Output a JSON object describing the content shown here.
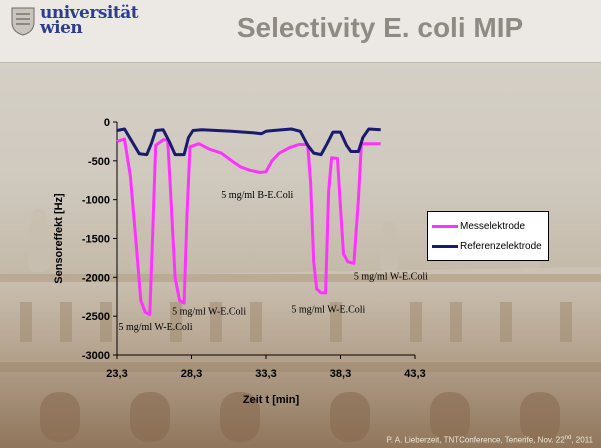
{
  "header": {
    "logo_text_line1": "universität",
    "logo_text_line2": "wien",
    "title": "Selectivity E. coli MIP"
  },
  "footer": {
    "text": "P. A. Lieberzeit, TNTConference, Tenerife, Nov. 22",
    "sup": "nd",
    "year": ", 2011"
  },
  "colors": {
    "messelektrode": "#ff33ff",
    "referenzelektrode": "#1a1a6e"
  },
  "chart_data": {
    "type": "line",
    "xlabel": "Zeit t [min]",
    "ylabel": "Sensoreffekt [Hz]",
    "xlim": [
      23.3,
      43.3
    ],
    "ylim": [
      -3000,
      0
    ],
    "x_ticks": [
      "23,3",
      "28,3",
      "33,3",
      "38,3",
      "43,3"
    ],
    "x_tick_values": [
      23.3,
      28.3,
      33.3,
      38.3,
      43.3
    ],
    "y_ticks": [
      "0",
      "-500",
      "-1000",
      "-1500",
      "-2000",
      "-2500",
      "-3000"
    ],
    "y_tick_values": [
      0,
      -500,
      -1000,
      -1500,
      -2000,
      -2500,
      -3000
    ],
    "legend_position": "right",
    "series": [
      {
        "name": "Messelektrode",
        "color": "#ff33ff",
        "points": [
          [
            23.3,
            -250
          ],
          [
            23.8,
            -220
          ],
          [
            24.2,
            -700
          ],
          [
            24.6,
            -1600
          ],
          [
            24.9,
            -2300
          ],
          [
            25.2,
            -2450
          ],
          [
            25.5,
            -2480
          ],
          [
            25.7,
            -1400
          ],
          [
            25.9,
            -300
          ],
          [
            26.4,
            -230
          ],
          [
            26.7,
            -230
          ],
          [
            26.9,
            -900
          ],
          [
            27.2,
            -2000
          ],
          [
            27.5,
            -2300
          ],
          [
            27.8,
            -2330
          ],
          [
            28.0,
            -1200
          ],
          [
            28.2,
            -320
          ],
          [
            28.8,
            -280
          ],
          [
            29.5,
            -350
          ],
          [
            30.3,
            -400
          ],
          [
            31.0,
            -500
          ],
          [
            31.6,
            -580
          ],
          [
            32.2,
            -620
          ],
          [
            32.9,
            -650
          ],
          [
            33.3,
            -640
          ],
          [
            33.7,
            -500
          ],
          [
            34.2,
            -400
          ],
          [
            34.9,
            -330
          ],
          [
            35.5,
            -290
          ],
          [
            36.1,
            -290
          ],
          [
            36.3,
            -800
          ],
          [
            36.5,
            -1800
          ],
          [
            36.7,
            -2150
          ],
          [
            37.0,
            -2200
          ],
          [
            37.3,
            -2200
          ],
          [
            37.5,
            -900
          ],
          [
            37.7,
            -460
          ],
          [
            38.1,
            -470
          ],
          [
            38.3,
            -1100
          ],
          [
            38.5,
            -1700
          ],
          [
            38.8,
            -1800
          ],
          [
            39.2,
            -1820
          ],
          [
            39.5,
            -1000
          ],
          [
            39.7,
            -280
          ],
          [
            40.2,
            -280
          ],
          [
            41.0,
            -280
          ]
        ]
      },
      {
        "name": "Referenzelektrode",
        "color": "#1a1a6e",
        "points": [
          [
            23.3,
            -110
          ],
          [
            23.8,
            -90
          ],
          [
            24.3,
            -250
          ],
          [
            24.8,
            -410
          ],
          [
            25.3,
            -420
          ],
          [
            25.6,
            -280
          ],
          [
            25.9,
            -110
          ],
          [
            26.4,
            -100
          ],
          [
            26.8,
            -250
          ],
          [
            27.2,
            -420
          ],
          [
            27.8,
            -420
          ],
          [
            28.1,
            -200
          ],
          [
            28.4,
            -110
          ],
          [
            29.0,
            -100
          ],
          [
            30.0,
            -110
          ],
          [
            31.0,
            -120
          ],
          [
            31.8,
            -130
          ],
          [
            32.5,
            -140
          ],
          [
            33.0,
            -150
          ],
          [
            33.3,
            -120
          ],
          [
            33.8,
            -110
          ],
          [
            34.4,
            -100
          ],
          [
            35.0,
            -90
          ],
          [
            35.6,
            -120
          ],
          [
            36.1,
            -300
          ],
          [
            36.5,
            -400
          ],
          [
            37.0,
            -420
          ],
          [
            37.4,
            -280
          ],
          [
            37.8,
            -130
          ],
          [
            38.3,
            -130
          ],
          [
            38.7,
            -300
          ],
          [
            39.0,
            -380
          ],
          [
            39.5,
            -380
          ],
          [
            39.8,
            -200
          ],
          [
            40.2,
            -90
          ],
          [
            41.0,
            -100
          ]
        ]
      }
    ],
    "annotations": [
      {
        "text": "5 mg/ml W-E.Coli",
        "x": 23.4,
        "y": -2680
      },
      {
        "text": "5 mg/ml W-E.Coli",
        "x": 27.0,
        "y": -2480
      },
      {
        "text": "5 mg/ml B-E.Coli",
        "x": 30.3,
        "y": -980
      },
      {
        "text": "5 mg/ml W-E.Coli",
        "x": 35.0,
        "y": -2450
      },
      {
        "text": "5 mg/ml W-E.Coli",
        "x": 39.2,
        "y": -2030
      }
    ]
  }
}
